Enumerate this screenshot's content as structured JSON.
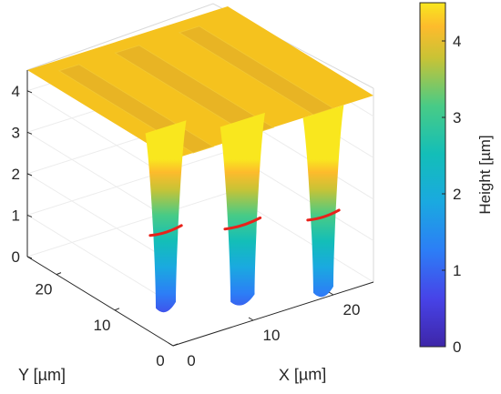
{
  "chart_data": {
    "type": "surface3d",
    "title": "",
    "xlabel": "X [µm]",
    "ylabel": "Y [µm]",
    "zlabel": "",
    "xlim": [
      0,
      25
    ],
    "ylim": [
      0,
      25
    ],
    "zlim": [
      0,
      4.5
    ],
    "x_ticks": [
      "0",
      "10",
      "20"
    ],
    "y_ticks": [
      "0",
      "10",
      "20"
    ],
    "z_ticks": [
      "0",
      "1",
      "2",
      "3",
      "4"
    ],
    "grid": true,
    "colormap": "parula",
    "surface": {
      "top_height": 4.5,
      "trench_bottom_height": 0,
      "trench_count": 3,
      "trench_x_ranges": [
        [
          2.5,
          5
        ],
        [
          9.5,
          12.5
        ],
        [
          17.5,
          20
        ]
      ],
      "trench_y_range": [
        0,
        23
      ],
      "contour_level": 2,
      "contour_color": "#e8221b"
    },
    "colorbar": {
      "label": "Height [µm]",
      "range": [
        0,
        4.5
      ],
      "ticks": [
        "0",
        "1",
        "2",
        "3",
        "4"
      ]
    }
  }
}
